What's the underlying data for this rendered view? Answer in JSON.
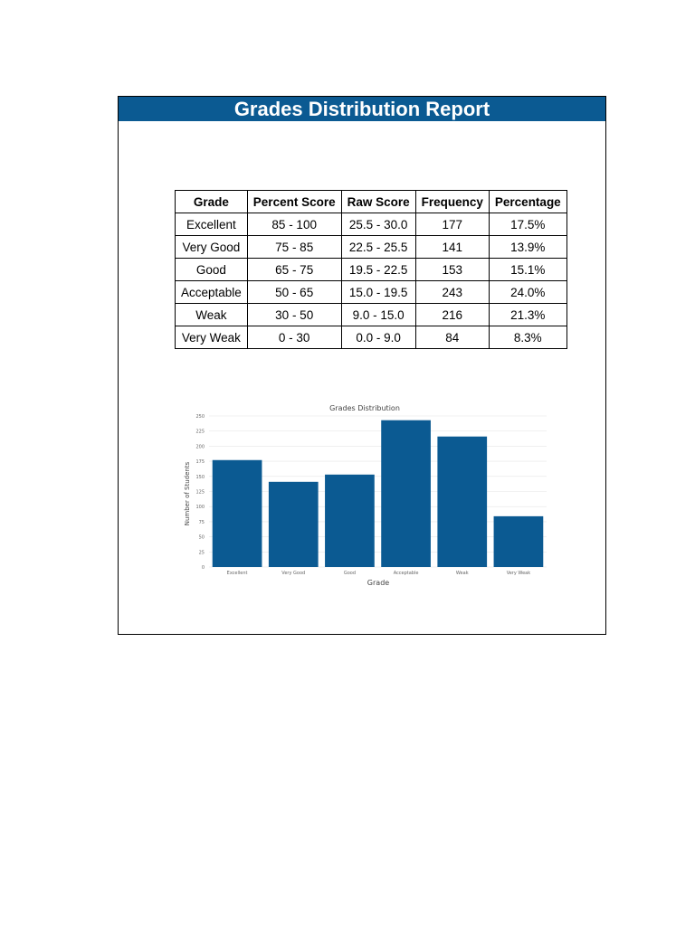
{
  "report": {
    "title": "Grades Distribution Report"
  },
  "table": {
    "headers": [
      "Grade",
      "Percent Score",
      "Raw Score",
      "Frequency",
      "Percentage"
    ],
    "rows": [
      [
        "Excellent",
        "85 - 100",
        "25.5 - 30.0",
        "177",
        "17.5%"
      ],
      [
        "Very Good",
        "75 - 85",
        "22.5 - 25.5",
        "141",
        "13.9%"
      ],
      [
        "Good",
        "65 - 75",
        "19.5 - 22.5",
        "153",
        "15.1%"
      ],
      [
        "Acceptable",
        "50 - 65",
        "15.0 - 19.5",
        "243",
        "24.0%"
      ],
      [
        "Weak",
        "30 - 50",
        "9.0 - 15.0",
        "216",
        "21.3%"
      ],
      [
        "Very Weak",
        "0 - 30",
        "0.0 - 9.0",
        "84",
        "8.3%"
      ]
    ]
  },
  "colors": {
    "title_bar": "#0b5a92",
    "bar": "#0b5a92"
  },
  "chart_data": {
    "type": "bar",
    "title": "Grades Distribution",
    "xlabel": "Grade",
    "ylabel": "Number of Students",
    "categories": [
      "Excellent",
      "Very Good",
      "Good",
      "Acceptable",
      "Weak",
      "Very Weak"
    ],
    "values": [
      177,
      141,
      153,
      243,
      216,
      84
    ],
    "ylim": [
      0,
      250
    ],
    "yticks": [
      "0",
      "25",
      "50",
      "75",
      "100",
      "125",
      "150",
      "175",
      "200",
      "225",
      "250"
    ],
    "grid": true,
    "legend": "none"
  }
}
